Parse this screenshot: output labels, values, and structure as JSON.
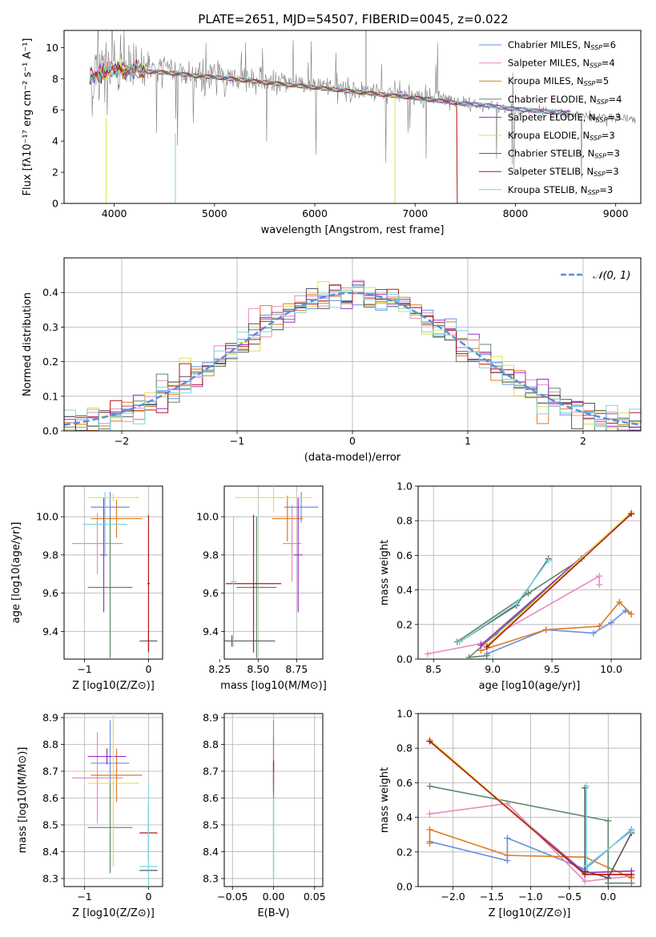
{
  "title": "PLATE=2651, MJD=54507, FIBERID=0045, z=0.022",
  "colors": {
    "Chabrier MILES": "#6a8fdc",
    "Salpeter MILES": "#e58bc2",
    "Kroupa MILES": "#e07a1f",
    "Chabrier ELODIE": "#5e8a66",
    "Salpeter ELODIE": "#9b30c0",
    "Kroupa ELODIE": "#dfe04a",
    "Chabrier STELIB": "#555555",
    "Salpeter STELIB": "#b01818",
    "Kroupa STELIB": "#7ad6de",
    "gaussian": "#5b8fd9",
    "data": "#7f7f7f"
  },
  "chart_data": [
    {
      "id": "spectrum",
      "type": "line",
      "title": "PLATE=2651, MJD=54507, FIBERID=0045, z=0.022",
      "xlabel": "wavelength [Angstrom, rest frame]",
      "ylabel": "Flux [fλ10⁻¹⁷ erg cm⁻² s⁻¹ A⁻¹]",
      "xlim": [
        3500,
        9250
      ],
      "ylim": [
        0,
        11.1
      ],
      "xticks": [
        4000,
        5000,
        6000,
        7000,
        8000,
        9000
      ],
      "xtick_labels": [
        "4000",
        "5000",
        "6000",
        "7000",
        "8000",
        "9000"
      ],
      "yticks": [
        0,
        2,
        4,
        6,
        8,
        10
      ],
      "ytick_labels": [
        "0",
        "2",
        "4",
        "6",
        "8",
        "10"
      ],
      "grid": false,
      "legend_position": "top-right",
      "legend": [
        {
          "name": "Chabrier MILES",
          "sub": "6"
        },
        {
          "name": "Salpeter MILES",
          "sub": "4"
        },
        {
          "name": "Kroupa MILES",
          "sub": "5"
        },
        {
          "name": "Chabrier ELODIE",
          "sub": "4"
        },
        {
          "name": "Salpeter ELODIE",
          "sub": "3"
        },
        {
          "name": "Kroupa ELODIE",
          "sub": "3"
        },
        {
          "name": "Chabrier STELIB",
          "sub": "3"
        },
        {
          "name": "Salpeter STELIB",
          "sub": "3"
        },
        {
          "name": "Kroupa STELIB",
          "sub": "3"
        }
      ],
      "legend_prefix": ", N",
      "legend_sub_label": "SSP",
      "legend_suffix": "=",
      "data_continuum": {
        "x": [
          3750,
          3900,
          4000,
          4200,
          4500,
          4800,
          5000,
          5300,
          5600,
          5900,
          6200,
          6500,
          6800,
          7100,
          7400,
          7700,
          8000,
          8300,
          8600,
          8900,
          9200
        ],
        "y": [
          8.2,
          8.6,
          8.8,
          8.7,
          8.6,
          8.3,
          8.2,
          8.0,
          7.8,
          7.6,
          7.4,
          7.2,
          7.0,
          6.8,
          6.5,
          6.3,
          6.0,
          5.9,
          5.7,
          5.5,
          5.4
        ]
      },
      "model_continuum": {
        "x": [
          3750,
          3900,
          4000,
          4200,
          4500,
          4800,
          5000,
          5300,
          5600,
          5900,
          6200,
          6500,
          6800,
          7100,
          7400,
          7700,
          8000,
          8300,
          8600
        ],
        "y": [
          8.0,
          8.4,
          8.6,
          8.5,
          8.4,
          8.2,
          8.1,
          7.9,
          7.7,
          7.5,
          7.3,
          7.1,
          6.9,
          6.7,
          6.45,
          6.3,
          6.05,
          5.9,
          5.8
        ]
      }
    },
    {
      "id": "residuals",
      "type": "histogram",
      "xlabel": "(data-model)/error",
      "ylabel": "Normed distribution",
      "xlim": [
        -2.5,
        2.5
      ],
      "ylim": [
        0,
        0.5
      ],
      "xticks": [
        -2,
        -1,
        0,
        1,
        2
      ],
      "xtick_labels": [
        "−2",
        "−1",
        "0",
        "1",
        "2"
      ],
      "yticks": [
        0,
        0.1,
        0.2,
        0.3,
        0.4
      ],
      "ytick_labels": [
        "0.0",
        "0.1",
        "0.2",
        "0.3",
        "0.4"
      ],
      "grid": true,
      "legend_position": "top-right",
      "legend_label": "𝒩(0, 1)",
      "bin_width": 0.1,
      "bins_start": -2.5,
      "gaussian": {
        "mean": 0,
        "sigma": 1
      }
    },
    {
      "id": "age-vs-Z",
      "type": "errorbar",
      "xlabel": "Z [log10(Z/Z⊙)]",
      "ylabel": "age  [log10(age/yr)]",
      "xlim": [
        -1.32,
        0.22
      ],
      "ylim": [
        9.255,
        10.16
      ],
      "xticks": [
        -1,
        0
      ],
      "xtick_labels": [
        "−1",
        "0"
      ],
      "yticks": [
        9.4,
        9.6,
        9.8,
        10.0
      ],
      "ytick_labels": [
        "9.4",
        "9.6",
        "9.8",
        "10.0"
      ],
      "grid": true,
      "points": [
        {
          "c": "Chabrier MILES",
          "x": -0.6,
          "xerr": 0.3,
          "y": 10.05,
          "yerr": 0.08
        },
        {
          "c": "Salpeter MILES",
          "x": -0.8,
          "xerr": 0.4,
          "y": 9.86,
          "yerr": 0.16
        },
        {
          "c": "Kroupa MILES",
          "x": -0.5,
          "xerr": 0.4,
          "y": 9.99,
          "yerr": 0.1
        },
        {
          "c": "Chabrier ELODIE",
          "x": -0.6,
          "xerr": 0.35,
          "y": 9.63,
          "yerr": 0.37
        },
        {
          "c": "Salpeter ELODIE",
          "x": -0.7,
          "xerr": 0.05,
          "y": 9.8,
          "yerr": 0.3
        },
        {
          "c": "Kroupa ELODIE",
          "x": -0.55,
          "xerr": 0.4,
          "y": 10.1,
          "yerr": 0.02
        },
        {
          "c": "Chabrier STELIB",
          "x": 0.0,
          "xerr": 0.14,
          "y": 9.35,
          "yerr": 0.05
        },
        {
          "c": "Salpeter STELIB",
          "x": 0.0,
          "xerr": 0.02,
          "y": 9.65,
          "yerr": 0.36
        },
        {
          "c": "Kroupa STELIB",
          "x": -0.68,
          "xerr": 0.35,
          "y": 9.96,
          "yerr": 0.17
        }
      ]
    },
    {
      "id": "age-vs-mass",
      "type": "errorbar",
      "xlabel": "mass [log10(M/M⊙)]",
      "ylabel": "",
      "xlim": [
        8.28,
        8.92
      ],
      "ylim": [
        9.255,
        10.16
      ],
      "xticks": [
        8.25,
        8.5,
        8.75
      ],
      "xtick_labels": [
        "8.25",
        "8.50",
        "8.75"
      ],
      "yticks": [
        9.4,
        9.6,
        9.8,
        10.0
      ],
      "ytick_labels": [
        "9.4",
        "9.6",
        "9.8",
        "10.0"
      ],
      "grid": true,
      "points": [
        {
          "c": "Chabrier MILES",
          "x": 8.78,
          "xerr": 0.11,
          "y": 10.05,
          "yerr": 0.08
        },
        {
          "c": "Salpeter MILES",
          "x": 8.72,
          "xerr": 0.06,
          "y": 9.86,
          "yerr": 0.2
        },
        {
          "c": "Kroupa MILES",
          "x": 8.69,
          "xerr": 0.1,
          "y": 9.99,
          "yerr": 0.12
        },
        {
          "c": "Chabrier ELODIE",
          "x": 8.49,
          "xerr": 0.13,
          "y": 9.63,
          "yerr": 0.37
        },
        {
          "c": "Salpeter ELODIE",
          "x": 8.76,
          "xerr": 0.03,
          "y": 9.8,
          "yerr": 0.3
        },
        {
          "c": "Kroupa ELODIE",
          "x": 8.6,
          "xerr": 0.25,
          "y": 10.1,
          "yerr": 0.08
        },
        {
          "c": "Chabrier STELIB",
          "x": 8.33,
          "xerr": 0.28,
          "y": 9.35,
          "yerr": 0.03
        },
        {
          "c": "Salpeter STELIB",
          "x": 8.47,
          "xerr": 0.18,
          "y": 9.65,
          "yerr": 0.36
        },
        {
          "c": "Kroupa STELIB",
          "x": 8.34,
          "xerr": 0.02,
          "y": 9.66,
          "yerr": 0.34
        }
      ]
    },
    {
      "id": "weight-vs-age",
      "type": "line",
      "xlabel": "age  [log10(age/yr)]",
      "ylabel": "mass weight",
      "xlim": [
        8.37,
        10.25
      ],
      "ylim": [
        0,
        1.0
      ],
      "xticks": [
        8.5,
        9.0,
        9.5,
        10.0
      ],
      "xtick_labels": [
        "8.5",
        "9.0",
        "9.5",
        "10.0"
      ],
      "yticks": [
        0,
        0.2,
        0.4,
        0.6,
        0.8,
        1.0
      ],
      "ytick_labels": [
        "0.0",
        "0.2",
        "0.4",
        "0.6",
        "0.8",
        "1.0"
      ],
      "grid": true,
      "series": [
        {
          "c": "Chabrier MILES",
          "x": [
            8.95,
            9.45,
            9.85,
            10.0,
            10.12,
            10.17
          ],
          "y": [
            0.03,
            0.17,
            0.15,
            0.21,
            0.28,
            0.26
          ]
        },
        {
          "c": "Salpeter MILES",
          "x": [
            8.45,
            8.9,
            9.9,
            9.9
          ],
          "y": [
            0.03,
            0.09,
            0.48,
            0.43
          ]
        },
        {
          "c": "Kroupa MILES",
          "x": [
            8.9,
            9.45,
            9.9,
            10.07,
            10.17
          ],
          "y": [
            0.05,
            0.17,
            0.19,
            0.33,
            0.26
          ]
        },
        {
          "c": "Chabrier ELODIE",
          "x": [
            8.7,
            9.3,
            9.75,
            8.8,
            8.95
          ],
          "y": [
            0.1,
            0.38,
            0.58,
            0.01,
            0.02
          ]
        },
        {
          "c": "Salpeter ELODIE",
          "x": [
            8.9,
            10.17
          ],
          "y": [
            0.08,
            0.84
          ]
        },
        {
          "c": "Kroupa ELODIE",
          "x": [
            8.95,
            10.17
          ],
          "y": [
            0.08,
            0.85
          ]
        },
        {
          "c": "Chabrier STELIB",
          "x": [
            8.72,
            9.2,
            9.47
          ],
          "y": [
            0.1,
            0.31,
            0.58
          ]
        },
        {
          "c": "Salpeter STELIB",
          "x": [
            8.95,
            10.17
          ],
          "y": [
            0.07,
            0.84
          ]
        },
        {
          "c": "Kroupa STELIB",
          "x": [
            8.72,
            9.2,
            9.47
          ],
          "y": [
            0.1,
            0.32,
            0.57
          ]
        }
      ]
    },
    {
      "id": "mass-vs-Z",
      "type": "errorbar",
      "xlabel": "Z [log10(Z/Z⊙)]",
      "ylabel": "mass [log10(M/M⊙)]",
      "xlim": [
        -1.32,
        0.22
      ],
      "ylim": [
        8.27,
        8.915
      ],
      "xticks": [
        -1,
        0
      ],
      "xtick_labels": [
        "−1",
        "0"
      ],
      "yticks": [
        8.3,
        8.4,
        8.5,
        8.6,
        8.7,
        8.8,
        8.9
      ],
      "ytick_labels": [
        "8.3",
        "8.4",
        "8.5",
        "8.6",
        "8.7",
        "8.8",
        "8.9"
      ],
      "grid": true,
      "points": [
        {
          "c": "Chabrier MILES",
          "x": -0.6,
          "xerr": 0.3,
          "y": 8.73,
          "yerr": 0.16
        },
        {
          "c": "Salpeter MILES",
          "x": -0.8,
          "xerr": 0.4,
          "y": 8.675,
          "yerr": 0.17
        },
        {
          "c": "Kroupa MILES",
          "x": -0.5,
          "xerr": 0.4,
          "y": 8.685,
          "yerr": 0.1
        },
        {
          "c": "Chabrier ELODIE",
          "x": -0.6,
          "xerr": 0.35,
          "y": 8.49,
          "yerr": 0.17
        },
        {
          "c": "Salpeter ELODIE",
          "x": -0.65,
          "xerr": 0.3,
          "y": 8.755,
          "yerr": 0.03
        },
        {
          "c": "Kroupa ELODIE",
          "x": -0.55,
          "xerr": 0.4,
          "y": 8.655,
          "yerr": 0.31
        },
        {
          "c": "Chabrier STELIB",
          "x": 0.0,
          "xerr": 0.14,
          "y": 8.33,
          "yerr": 0.01
        },
        {
          "c": "Salpeter STELIB",
          "x": 0.0,
          "xerr": 0.14,
          "y": 8.47,
          "yerr": 0.1
        },
        {
          "c": "Kroupa STELIB",
          "x": 0.0,
          "xerr": 0.14,
          "y": 8.345,
          "yerr": 0.3
        }
      ]
    },
    {
      "id": "mass-vs-EBV",
      "type": "errorbar",
      "xlabel": "E(B-V)",
      "ylabel": "",
      "xlim": [
        -0.06,
        0.06
      ],
      "ylim": [
        8.27,
        8.915
      ],
      "xticks": [
        -0.05,
        0,
        0.05
      ],
      "xtick_labels": [
        "−0.05",
        "0.00",
        "0.05"
      ],
      "yticks": [
        8.3,
        8.4,
        8.5,
        8.6,
        8.7,
        8.8,
        8.9
      ],
      "ytick_labels": [
        "8.3",
        "8.4",
        "8.5",
        "8.6",
        "8.7",
        "8.8",
        "8.9"
      ],
      "grid": true,
      "points": [
        {
          "c": "Chabrier MILES",
          "x": 0.0,
          "xerr": 0,
          "y": 8.77,
          "yerr": 0.12
        },
        {
          "c": "Kroupa MILES",
          "x": 0.0,
          "xerr": 0,
          "y": 8.73,
          "yerr": 0.1
        },
        {
          "c": "Salpeter STELIB",
          "x": 0.0,
          "xerr": 0,
          "y": 8.68,
          "yerr": 0.06
        },
        {
          "c": "Chabrier ELODIE",
          "x": 0.0,
          "xerr": 0,
          "y": 8.5,
          "yerr": 0.2
        },
        {
          "c": "Kroupa STELIB",
          "x": 0.0,
          "xerr": 0,
          "y": 8.45,
          "yerr": 0.15
        }
      ]
    },
    {
      "id": "weight-vs-Z",
      "type": "line",
      "xlabel": "Z [log10(Z/Z⊙)]",
      "ylabel": "mass weight",
      "xlim": [
        -2.45,
        0.42
      ],
      "ylim": [
        0,
        1.0
      ],
      "xticks": [
        -2.0,
        -1.5,
        -1.0,
        -0.5,
        0.0
      ],
      "xtick_labels": [
        "−2.0",
        "−1.5",
        "−1.0",
        "−0.5",
        "0.0"
      ],
      "yticks": [
        0,
        0.2,
        0.4,
        0.6,
        0.8,
        1.0
      ],
      "ytick_labels": [
        "0.0",
        "0.2",
        "0.4",
        "0.6",
        "0.8",
        "1.0"
      ],
      "grid": true,
      "series": [
        {
          "c": "Chabrier MILES",
          "x": [
            -2.3,
            -1.3,
            -1.3,
            -0.3,
            0.3
          ],
          "y": [
            0.26,
            0.15,
            0.28,
            0.1,
            0.33
          ]
        },
        {
          "c": "Salpeter MILES",
          "x": [
            -2.3,
            -1.3,
            -0.3,
            0.3
          ],
          "y": [
            0.42,
            0.48,
            0.03,
            0.06
          ]
        },
        {
          "c": "Kroupa MILES",
          "x": [
            -2.3,
            -2.3,
            -1.3,
            -0.3,
            0.3
          ],
          "y": [
            0.25,
            0.33,
            0.18,
            0.17,
            0.05
          ]
        },
        {
          "c": "Chabrier ELODIE",
          "x": [
            -2.3,
            0.0,
            0.0,
            0.3
          ],
          "y": [
            0.58,
            0.38,
            0.02,
            0.02
          ]
        },
        {
          "c": "Salpeter ELODIE",
          "x": [
            -2.3,
            -0.3,
            0.3
          ],
          "y": [
            0.84,
            0.08,
            0.09
          ]
        },
        {
          "c": "Kroupa ELODIE",
          "x": [
            -2.3,
            -0.3,
            0.3
          ],
          "y": [
            0.85,
            0.07,
            0.07
          ]
        },
        {
          "c": "Chabrier STELIB",
          "x": [
            -0.3,
            -0.3,
            0.0,
            0.3
          ],
          "y": [
            0.57,
            0.09,
            0.05,
            0.31
          ]
        },
        {
          "c": "Salpeter STELIB",
          "x": [
            -2.3,
            -0.3,
            0.3
          ],
          "y": [
            0.84,
            0.07,
            0.07
          ]
        },
        {
          "c": "Kroupa STELIB",
          "x": [
            -0.28,
            -0.28,
            0.3
          ],
          "y": [
            0.58,
            0.12,
            0.32
          ]
        }
      ]
    }
  ]
}
